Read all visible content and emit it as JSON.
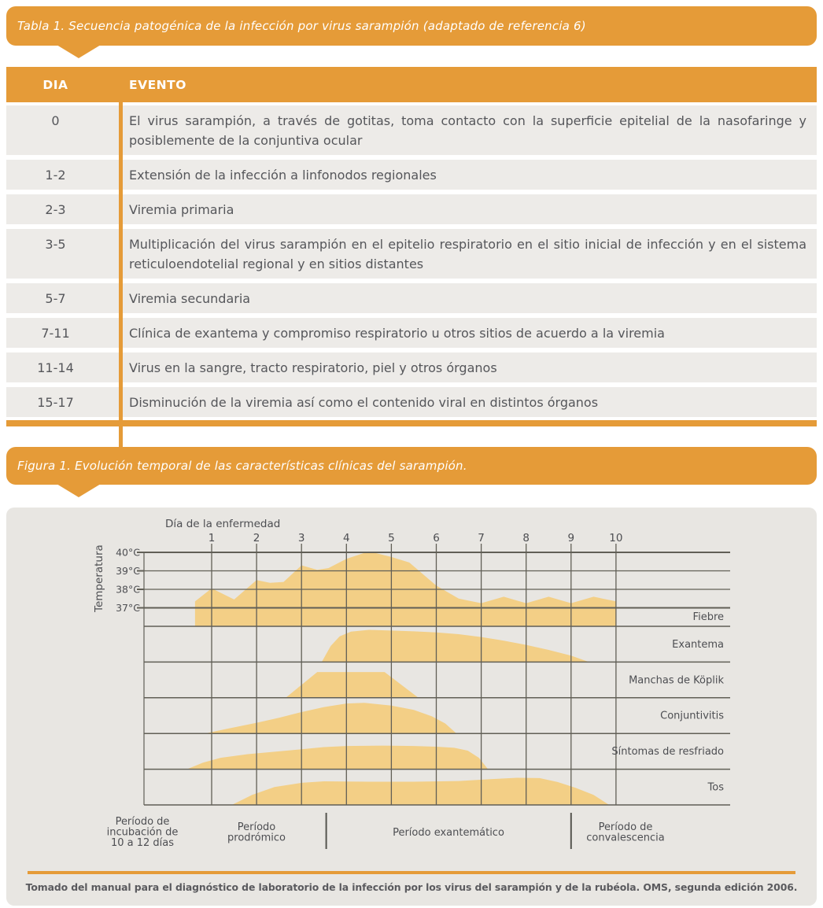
{
  "table": {
    "banner": "Tabla 1. Secuencia patogénica de la infección por virus sarampión (adaptado de referencia 6)",
    "headers": {
      "dia": "DIA",
      "evento": "EVENTO"
    },
    "rows": [
      {
        "dia": "0",
        "evento": "El virus sarampión, a través de gotitas, toma contacto con la superficie epitelial de la nasofaringe y posiblemente de la conjuntiva ocular"
      },
      {
        "dia": "1-2",
        "evento": "Extensión de la infección a linfonodos regionales"
      },
      {
        "dia": "2-3",
        "evento": "Viremia primaria"
      },
      {
        "dia": "3-5",
        "evento": "Multiplicación del virus sarampión en el epitelio respiratorio en el sitio inicial de infección y en el sistema reticuloendotelial regional y en sitios distantes"
      },
      {
        "dia": "5-7",
        "evento": "Viremia secundaria"
      },
      {
        "dia": "7-11",
        "evento": "Clínica de exantema y compromiso respiratorio u otros sitios de acuerdo a la viremia"
      },
      {
        "dia": "11-14",
        "evento": "Virus en la sangre, tracto respiratorio, piel y otros órganos"
      },
      {
        "dia": "15-17",
        "evento": "Disminución de la viremia así como el contenido viral en distintos órganos"
      }
    ]
  },
  "figure": {
    "banner": "Figura 1. Evolución temporal de las características clínicas del sarampión.",
    "footnote": "Tomado del manual para el diagnóstico de laboratorio de la infección por los virus del sarampión y de la rubéola. OMS, segunda edición 2006."
  },
  "chart_data": {
    "type": "area",
    "xlabel": "Día de la enfermedad",
    "ylabel": "Temperatura",
    "x_ticks": [
      "1",
      "2",
      "3",
      "4",
      "5",
      "6",
      "7",
      "8",
      "9",
      "10"
    ],
    "y_ticks": [
      {
        "label": "40°C",
        "temp": 40
      },
      {
        "label": "39°C",
        "temp": 39
      },
      {
        "label": "38°C",
        "temp": 38
      },
      {
        "label": "37°C",
        "temp": 37
      }
    ],
    "x_range": [
      0.5,
      10
    ],
    "y_range_temp": [
      36,
      40
    ],
    "grid": true,
    "legend_position": "right-column",
    "fever": {
      "label": "Fiebre",
      "points_day_temp": [
        [
          0.63,
          37.35
        ],
        [
          1,
          38.05
        ],
        [
          1.5,
          37.45
        ],
        [
          2,
          38.5
        ],
        [
          2.3,
          38.35
        ],
        [
          2.6,
          38.4
        ],
        [
          3,
          39.3
        ],
        [
          3.35,
          39.05
        ],
        [
          3.6,
          39.15
        ],
        [
          4,
          39.65
        ],
        [
          4.5,
          40.05
        ],
        [
          5,
          39.75
        ],
        [
          5.4,
          39.45
        ],
        [
          6,
          38.2
        ],
        [
          6.5,
          37.5
        ],
        [
          7,
          37.25
        ],
        [
          7.5,
          37.6
        ],
        [
          8,
          37.25
        ],
        [
          8.5,
          37.6
        ],
        [
          9,
          37.25
        ],
        [
          9.5,
          37.6
        ],
        [
          10,
          37.35
        ]
      ]
    },
    "bands": [
      {
        "label": "Exantema",
        "points_day_frac": [
          [
            3.45,
            0
          ],
          [
            3.65,
            0.45
          ],
          [
            3.85,
            0.72
          ],
          [
            4.1,
            0.85
          ],
          [
            4.5,
            0.9
          ],
          [
            5,
            0.88
          ],
          [
            5.5,
            0.86
          ],
          [
            6,
            0.83
          ],
          [
            6.5,
            0.78
          ],
          [
            7,
            0.7
          ],
          [
            7.5,
            0.6
          ],
          [
            8,
            0.48
          ],
          [
            8.5,
            0.34
          ],
          [
            9,
            0.18
          ],
          [
            9.4,
            0
          ]
        ]
      },
      {
        "label": "Manchas de Köplik",
        "points_day_frac": [
          [
            2.65,
            0
          ],
          [
            3.35,
            0.72
          ],
          [
            4.85,
            0.72
          ],
          [
            5.6,
            0
          ]
        ]
      },
      {
        "label": "Conjuntivitis",
        "points_day_frac": [
          [
            0.85,
            0
          ],
          [
            1.3,
            0.12
          ],
          [
            2,
            0.3
          ],
          [
            2.5,
            0.44
          ],
          [
            3,
            0.6
          ],
          [
            3.5,
            0.74
          ],
          [
            4,
            0.84
          ],
          [
            4.4,
            0.86
          ],
          [
            5,
            0.78
          ],
          [
            5.5,
            0.66
          ],
          [
            5.9,
            0.48
          ],
          [
            6.2,
            0.28
          ],
          [
            6.45,
            0
          ]
        ]
      },
      {
        "label": "Síntomas de resfriado",
        "points_day_frac": [
          [
            0.45,
            0
          ],
          [
            0.8,
            0.18
          ],
          [
            1.2,
            0.32
          ],
          [
            1.8,
            0.42
          ],
          [
            2.5,
            0.5
          ],
          [
            3,
            0.56
          ],
          [
            3.5,
            0.62
          ],
          [
            4,
            0.65
          ],
          [
            4.8,
            0.66
          ],
          [
            5.5,
            0.65
          ],
          [
            6,
            0.63
          ],
          [
            6.4,
            0.6
          ],
          [
            6.7,
            0.52
          ],
          [
            6.95,
            0.32
          ],
          [
            7.15,
            0
          ]
        ]
      },
      {
        "label": "Tos",
        "points_day_frac": [
          [
            1.45,
            0
          ],
          [
            1.9,
            0.28
          ],
          [
            2.4,
            0.5
          ],
          [
            3,
            0.62
          ],
          [
            3.5,
            0.66
          ],
          [
            4.5,
            0.65
          ],
          [
            5.5,
            0.65
          ],
          [
            6.5,
            0.67
          ],
          [
            7.2,
            0.72
          ],
          [
            7.8,
            0.76
          ],
          [
            8.3,
            0.75
          ],
          [
            8.7,
            0.64
          ],
          [
            9.1,
            0.48
          ],
          [
            9.5,
            0.28
          ],
          [
            9.85,
            0
          ]
        ]
      }
    ],
    "periods": {
      "dividers_day": [
        3.55,
        9.0
      ],
      "labels": [
        [
          "Período de",
          "incubación de",
          "10 a 12 días"
        ],
        [
          "Período",
          "prodrómico"
        ],
        [
          "Período exantemático"
        ],
        [
          "Período de",
          "convalescencia"
        ]
      ]
    },
    "colors": {
      "fill": "#F3CF86",
      "grid": "#615F56",
      "accent": "#E59B38",
      "text": "#55565a"
    }
  }
}
